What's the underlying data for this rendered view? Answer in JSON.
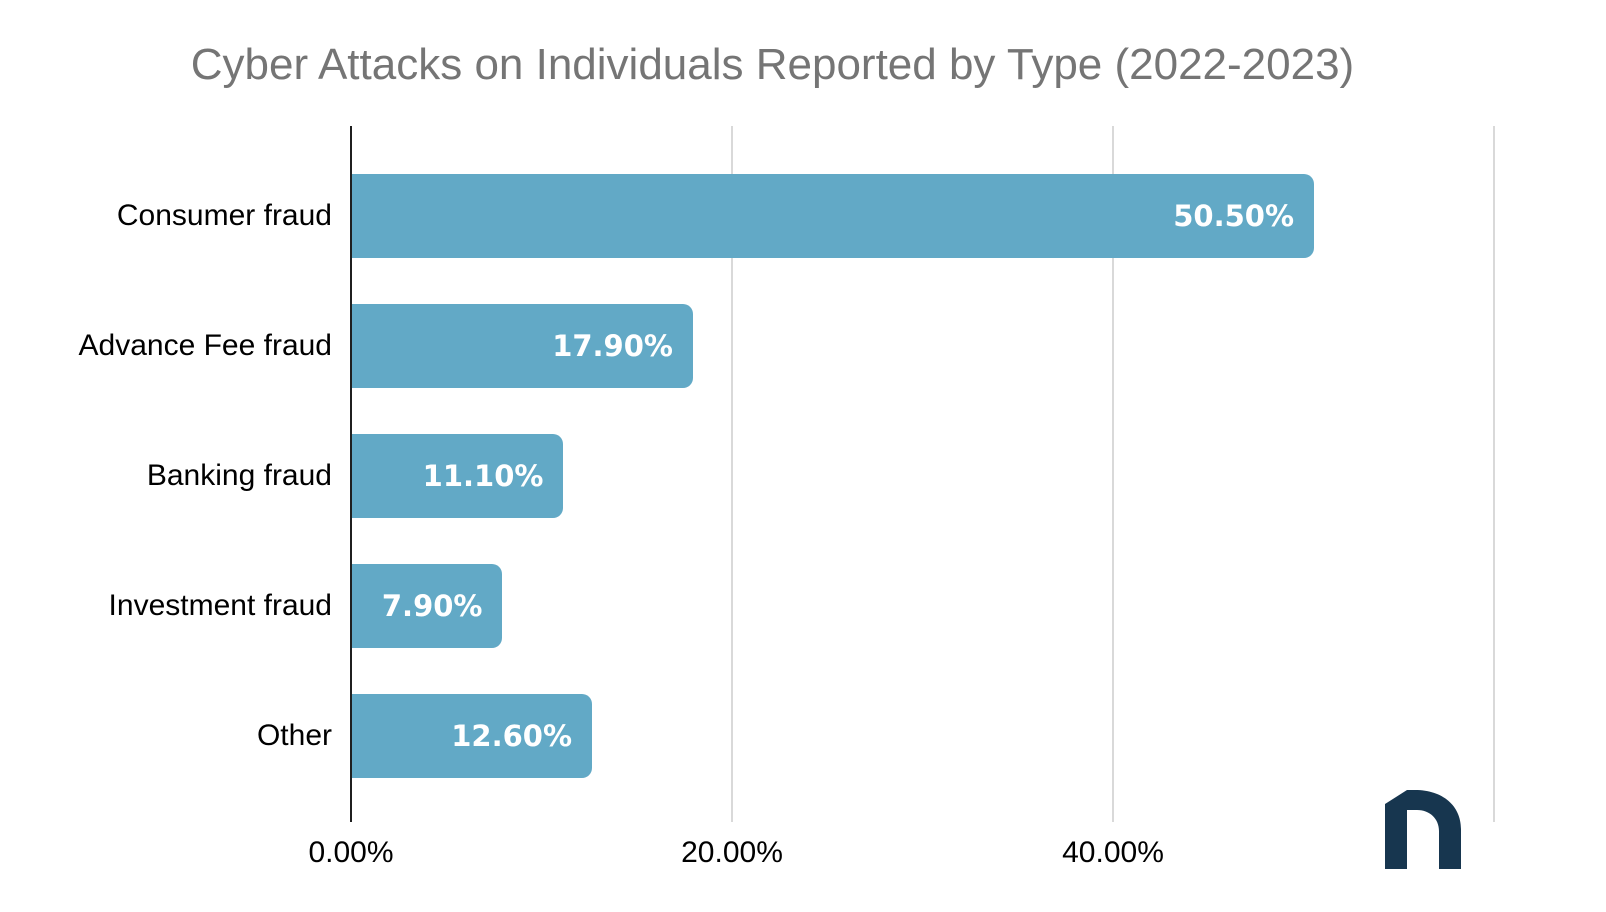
{
  "title": "Cyber Attacks on Individuals Reported by Type (2022-2023)",
  "colors": {
    "bar": "#62a9c6",
    "title_text": "#757575",
    "gridline": "#d9d9d9",
    "axis_line": "#1f1f1f",
    "value_label": "#ffffff",
    "category_label": "#000000",
    "logo": "#17364f"
  },
  "logo": {
    "letter": "n"
  },
  "chart_data": {
    "type": "bar",
    "orientation": "horizontal",
    "title": "Cyber Attacks on Individuals Reported by Type (2022-2023)",
    "categories": [
      "Consumer fraud",
      "Advance Fee fraud",
      "Banking fraud",
      "Investment fraud",
      "Other"
    ],
    "values": [
      50.5,
      17.9,
      11.1,
      7.9,
      12.6
    ],
    "value_labels": [
      "50.50%",
      "17.90%",
      "11.10%",
      "7.90%",
      "12.60%"
    ],
    "xlabel": "",
    "ylabel": "",
    "xlim": [
      0,
      60
    ],
    "x_ticks": [
      0,
      20,
      40
    ],
    "x_tick_labels": [
      "0.00%",
      "20.00%",
      "40.00%"
    ],
    "grid_ticks": [
      20,
      40,
      60
    ],
    "grid": "vertical-only",
    "legend": false,
    "value_label_position": "inside-right",
    "bar_color": "#62a9c6"
  }
}
